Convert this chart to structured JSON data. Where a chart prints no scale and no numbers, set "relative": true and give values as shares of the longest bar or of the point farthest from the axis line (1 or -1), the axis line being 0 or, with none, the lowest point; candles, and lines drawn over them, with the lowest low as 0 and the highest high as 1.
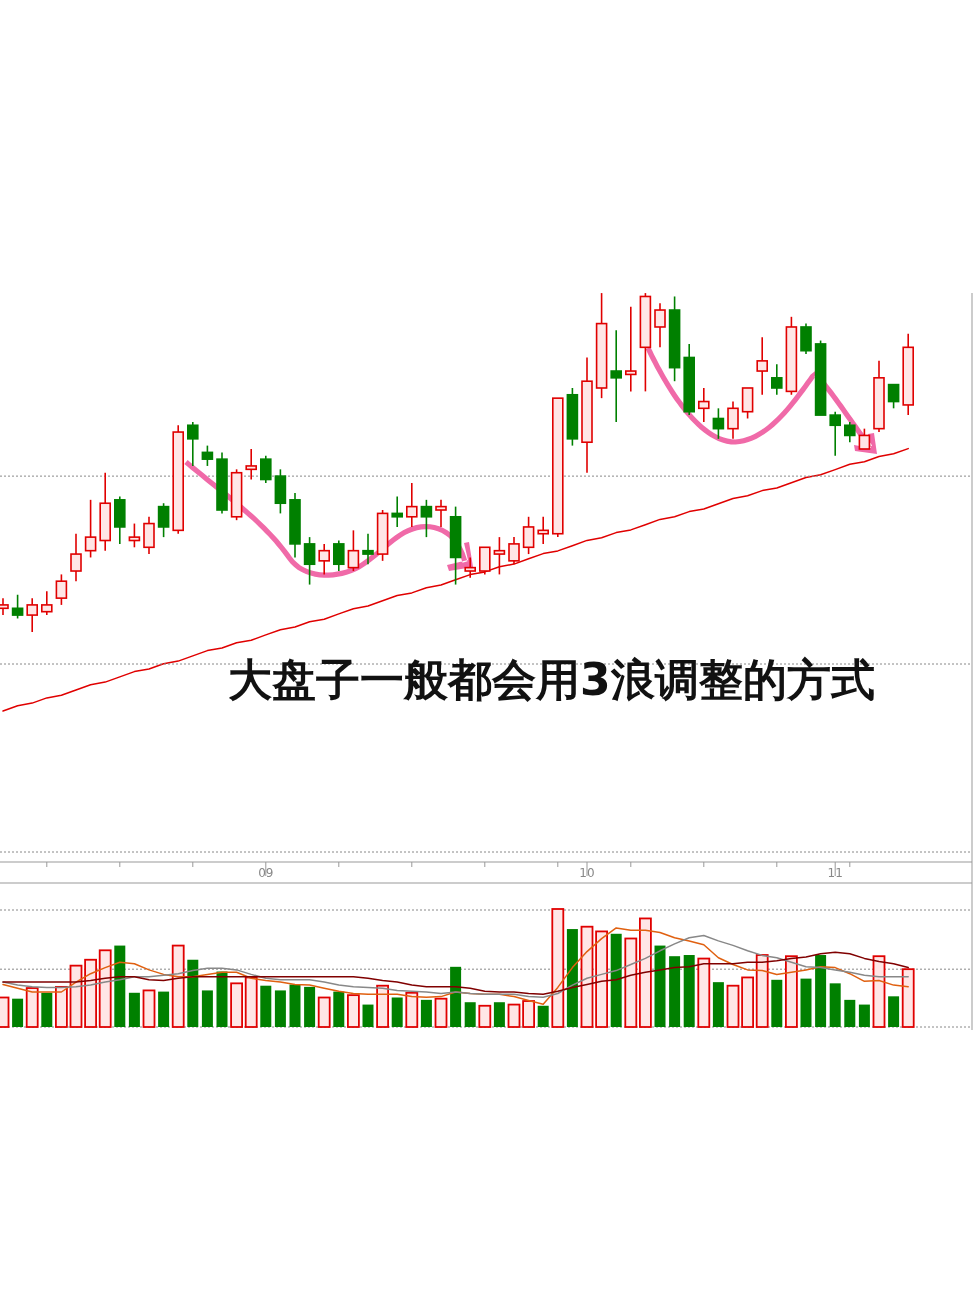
{
  "chart_data": [
    {
      "type": "candlestick",
      "relative": true,
      "ref_lines": [
        {
          "axis": "y",
          "value": 0.46,
          "color": "#888888",
          "line_style": "dotted"
        }
      ],
      "categories": [
        null,
        null,
        null,
        null,
        null,
        null,
        null,
        null,
        null,
        null,
        null,
        null,
        null,
        null,
        null,
        null,
        null,
        null,
        "09",
        null,
        null,
        null,
        null,
        null,
        null,
        null,
        null,
        null,
        null,
        null,
        null,
        null,
        null,
        null,
        null,
        null,
        null,
        null,
        null,
        null,
        "10",
        null,
        null,
        null,
        null,
        null,
        null,
        null,
        null,
        null,
        null,
        null,
        null,
        null,
        null,
        null,
        null,
        "11",
        null,
        null,
        null,
        null,
        null
      ],
      "ohlc": [
        [
          0.07,
          0.1,
          0.05,
          0.08
        ],
        [
          0.07,
          0.11,
          0.04,
          0.05
        ],
        [
          0.05,
          0.1,
          0,
          0.08
        ],
        [
          0.06,
          0.12,
          0.05,
          0.08
        ],
        [
          0.1,
          0.17,
          0.08,
          0.15
        ],
        [
          0.18,
          0.29,
          0.15,
          0.23
        ],
        [
          0.24,
          0.39,
          0.22,
          0.28
        ],
        [
          0.27,
          0.47,
          0.24,
          0.38
        ],
        [
          0.39,
          0.4,
          0.26,
          0.31
        ],
        [
          0.27,
          0.32,
          0.25,
          0.28
        ],
        [
          0.25,
          0.34,
          0.23,
          0.32
        ],
        [
          0.37,
          0.38,
          0.28,
          0.31
        ],
        [
          0.3,
          0.61,
          0.29,
          0.59
        ],
        [
          0.61,
          0.62,
          0.49,
          0.57
        ],
        [
          0.53,
          0.55,
          0.49,
          0.51
        ],
        [
          0.51,
          0.53,
          0.35,
          0.36
        ],
        [
          0.34,
          0.48,
          0.33,
          0.47
        ],
        [
          0.48,
          0.54,
          0.45,
          0.49
        ],
        [
          0.51,
          0.52,
          0.44,
          0.45
        ],
        [
          0.46,
          0.48,
          0.35,
          0.38
        ],
        [
          0.39,
          0.41,
          0.22,
          0.26
        ],
        [
          0.26,
          0.28,
          0.14,
          0.2
        ],
        [
          0.21,
          0.26,
          0.17,
          0.24
        ],
        [
          0.26,
          0.27,
          0.18,
          0.2
        ],
        [
          0.19,
          0.3,
          0.18,
          0.24
        ],
        [
          0.24,
          0.29,
          0.2,
          0.23
        ],
        [
          0.23,
          0.36,
          0.21,
          0.35
        ],
        [
          0.35,
          0.4,
          0.31,
          0.34
        ],
        [
          0.34,
          0.44,
          0.31,
          0.37
        ],
        [
          0.37,
          0.39,
          0.28,
          0.34
        ],
        [
          0.36,
          0.39,
          0.31,
          0.37
        ],
        [
          0.34,
          0.37,
          0.14,
          0.22
        ],
        [
          0.18,
          0.22,
          0.16,
          0.19
        ],
        [
          0.18,
          0.25,
          0.17,
          0.25
        ],
        [
          0.23,
          0.28,
          0.17,
          0.24
        ],
        [
          0.21,
          0.28,
          0.2,
          0.26
        ],
        [
          0.25,
          0.34,
          0.23,
          0.31
        ],
        [
          0.29,
          0.34,
          0.26,
          0.3
        ],
        [
          0.29,
          0.69,
          0.28,
          0.69
        ],
        [
          0.7,
          0.72,
          0.55,
          0.57
        ],
        [
          0.56,
          0.81,
          0.47,
          0.74
        ],
        [
          0.72,
          1,
          0.69,
          0.91
        ],
        [
          0.77,
          0.89,
          0.62,
          0.75
        ],
        [
          0.76,
          0.96,
          0.71,
          0.77
        ],
        [
          0.84,
          1,
          0.71,
          0.99
        ],
        [
          0.9,
          0.97,
          0.84,
          0.95
        ],
        [
          0.95,
          0.99,
          0.74,
          0.78
        ],
        [
          0.81,
          0.85,
          0.64,
          0.65
        ],
        [
          0.66,
          0.72,
          0.62,
          0.68
        ],
        [
          0.63,
          0.66,
          0.57,
          0.6
        ],
        [
          0.6,
          0.68,
          0.57,
          0.66
        ],
        [
          0.65,
          0.72,
          0.63,
          0.72
        ],
        [
          0.77,
          0.87,
          0.7,
          0.8
        ],
        [
          0.75,
          0.79,
          0.7,
          0.72
        ],
        [
          0.71,
          0.93,
          0.7,
          0.9
        ],
        [
          0.9,
          0.91,
          0.82,
          0.83
        ],
        [
          0.85,
          0.86,
          0.64,
          0.64
        ],
        [
          0.64,
          0.65,
          0.52,
          0.61
        ],
        [
          0.61,
          0.62,
          0.56,
          0.58
        ],
        [
          0.54,
          0.6,
          0.54,
          0.58
        ],
        [
          0.6,
          0.8,
          0.59,
          0.75
        ],
        [
          0.73,
          0.73,
          0.66,
          0.68
        ],
        [
          0.67,
          0.88,
          0.64,
          0.84
        ]
      ],
      "colors": [
        "#e00000",
        "#008000",
        "#e00000",
        "#e00000",
        "#e00000",
        "#e00000",
        "#e00000",
        "#e00000",
        "#008000",
        "#e00000",
        "#e00000",
        "#008000",
        "#e00000",
        "#008000",
        "#008000",
        "#008000",
        "#e00000",
        "#e00000",
        "#008000",
        "#008000",
        "#008000",
        "#008000",
        "#e00000",
        "#008000",
        "#e00000",
        "#008000",
        "#e00000",
        "#008000",
        "#e00000",
        "#008000",
        "#e00000",
        "#008000",
        "#e00000",
        "#e00000",
        "#e00000",
        "#e00000",
        "#e00000",
        "#e00000",
        "#e00000",
        "#008000",
        "#e00000",
        "#e00000",
        "#008000",
        "#e00000",
        "#e00000",
        "#e00000",
        "#008000",
        "#008000",
        "#e00000",
        "#008000",
        "#e00000",
        "#e00000",
        "#e00000",
        "#008000",
        "#e00000",
        "#008000",
        "#008000",
        "#008000",
        "#008000",
        "#e00000",
        "#e00000",
        "#008000",
        "#e00000"
      ],
      "annotations": [
        "大盘子一般都会用3浪调整的方式"
      ]
    },
    {
      "type": "line",
      "relative": true,
      "categories": [
        null,
        null,
        null,
        null,
        null,
        null,
        null,
        null,
        null,
        null,
        null,
        null,
        null,
        null,
        null,
        null,
        null,
        null,
        null,
        null,
        null,
        null,
        null,
        null,
        null,
        null,
        null,
        null,
        null,
        null,
        null,
        null,
        null,
        null,
        null,
        null,
        null,
        null,
        null,
        null,
        null,
        null,
        null,
        null,
        null,
        null,
        null,
        null,
        null,
        null,
        null,
        null,
        null,
        null,
        null,
        null,
        null,
        null,
        null,
        null,
        null,
        null,
        null
      ],
      "series": [
        {
          "color": "#e00000",
          "values": [
            0,
            0.02,
            0.03,
            0.05,
            0.06,
            0.08,
            0.1,
            0.11,
            0.13,
            0.15,
            0.16,
            0.18,
            0.19,
            0.21,
            0.23,
            0.24,
            0.26,
            0.27,
            0.29,
            0.31,
            0.32,
            0.34,
            0.35,
            0.37,
            0.39,
            0.4,
            0.42,
            0.44,
            0.45,
            0.47,
            0.48,
            0.5,
            0.52,
            0.53,
            0.55,
            0.56,
            0.58,
            0.6,
            0.61,
            0.63,
            0.65,
            0.66,
            0.68,
            0.69,
            0.71,
            0.73,
            0.74,
            0.76,
            0.77,
            0.79,
            0.81,
            0.82,
            0.84,
            0.85,
            0.87,
            0.89,
            0.9,
            0.92,
            0.94,
            0.95,
            0.97,
            0.98,
            1
          ]
        }
      ]
    },
    {
      "type": "bar",
      "relative": true,
      "ref_lines": [
        {
          "axis": "y",
          "value": 0.49,
          "color": "#888888",
          "line_style": "dotted"
        }
      ],
      "categories": [
        null,
        null,
        null,
        null,
        null,
        null,
        null,
        null,
        null,
        null,
        null,
        null,
        null,
        null,
        null,
        null,
        null,
        null,
        null,
        null,
        null,
        null,
        null,
        null,
        null,
        null,
        null,
        null,
        null,
        null,
        null,
        null,
        null,
        null,
        null,
        null,
        null,
        null,
        null,
        null,
        null,
        null,
        null,
        null,
        null,
        null,
        null,
        null,
        null,
        null,
        null,
        null,
        null,
        null,
        null,
        null,
        null,
        null,
        null,
        null,
        null,
        null,
        null
      ],
      "values": [
        0.25,
        0.24,
        0.33,
        0.29,
        0.34,
        0.52,
        0.57,
        0.65,
        0.69,
        0.29,
        0.31,
        0.3,
        0.69,
        0.57,
        0.31,
        0.47,
        0.37,
        0.42,
        0.35,
        0.31,
        0.36,
        0.34,
        0.25,
        0.3,
        0.27,
        0.19,
        0.35,
        0.25,
        0.29,
        0.23,
        0.24,
        0.51,
        0.21,
        0.18,
        0.21,
        0.19,
        0.22,
        0.18,
        1,
        0.83,
        0.85,
        0.81,
        0.79,
        0.75,
        0.92,
        0.69,
        0.6,
        0.61,
        0.58,
        0.38,
        0.35,
        0.42,
        0.61,
        0.4,
        0.6,
        0.41,
        0.61,
        0.37,
        0.23,
        0.19,
        0.6,
        0.26,
        0.49
      ],
      "colors": [
        "#e00000",
        "#008000",
        "#e00000",
        "#008000",
        "#e00000",
        "#e00000",
        "#e00000",
        "#e00000",
        "#008000",
        "#008000",
        "#e00000",
        "#008000",
        "#e00000",
        "#008000",
        "#008000",
        "#008000",
        "#e00000",
        "#e00000",
        "#008000",
        "#008000",
        "#008000",
        "#008000",
        "#e00000",
        "#008000",
        "#e00000",
        "#008000",
        "#e00000",
        "#008000",
        "#e00000",
        "#008000",
        "#e00000",
        "#008000",
        "#008000",
        "#e00000",
        "#008000",
        "#e00000",
        "#e00000",
        "#008000",
        "#e00000",
        "#008000",
        "#e00000",
        "#e00000",
        "#008000",
        "#e00000",
        "#e00000",
        "#008000",
        "#008000",
        "#008000",
        "#e00000",
        "#008000",
        "#e00000",
        "#e00000",
        "#e00000",
        "#008000",
        "#e00000",
        "#008000",
        "#008000",
        "#008000",
        "#008000",
        "#008000",
        "#e00000",
        "#008000",
        "#e00000"
      ]
    },
    {
      "type": "line",
      "relative": true,
      "categories": [
        null,
        null,
        null,
        null,
        null,
        null,
        null,
        null,
        null,
        null,
        null,
        null,
        null,
        null,
        null,
        null,
        null,
        null,
        null,
        null,
        null,
        null,
        null,
        null,
        null,
        null,
        null,
        null,
        null,
        null,
        null,
        null,
        null,
        null,
        null,
        null,
        null,
        null,
        null,
        null,
        null,
        null,
        null,
        null,
        null,
        null,
        null,
        null,
        null,
        null,
        null,
        null,
        null,
        null,
        null,
        null,
        null,
        null,
        null,
        null,
        null,
        null,
        null
      ],
      "series": [
        {
          "color": "#e06010",
          "values": [
            0.26,
            0.21,
            0.16,
            0.16,
            0.16,
            0.29,
            0.4,
            0.48,
            0.55,
            0.53,
            0.45,
            0.39,
            0.36,
            0.36,
            0.39,
            0.42,
            0.42,
            0.34,
            0.31,
            0.29,
            0.26,
            0.25,
            0.21,
            0.17,
            0.14,
            0.13,
            0.13,
            0.13,
            0.1,
            0.09,
            0.1,
            0.16,
            0.14,
            0.13,
            0.13,
            0.1,
            0.05,
            0,
            0.22,
            0.48,
            0.69,
            0.86,
            1,
            0.97,
            0.97,
            0.94,
            0.87,
            0.83,
            0.78,
            0.61,
            0.52,
            0.45,
            0.44,
            0.39,
            0.42,
            0.45,
            0.49,
            0.48,
            0.4,
            0.3,
            0.31,
            0.25,
            0.23
          ]
        },
        {
          "color": "#888888",
          "values": [
            0.29,
            0.25,
            0.23,
            0.22,
            0.22,
            0.23,
            0.25,
            0.29,
            0.32,
            0.36,
            0.36,
            0.38,
            0.4,
            0.44,
            0.47,
            0.47,
            0.45,
            0.39,
            0.34,
            0.32,
            0.32,
            0.32,
            0.29,
            0.25,
            0.23,
            0.22,
            0.21,
            0.18,
            0.17,
            0.16,
            0.14,
            0.16,
            0.14,
            0.13,
            0.13,
            0.13,
            0.1,
            0.09,
            0.14,
            0.25,
            0.34,
            0.39,
            0.44,
            0.52,
            0.6,
            0.7,
            0.79,
            0.87,
            0.9,
            0.83,
            0.77,
            0.7,
            0.64,
            0.61,
            0.55,
            0.49,
            0.48,
            0.45,
            0.42,
            0.38,
            0.36,
            0.36,
            0.36
          ]
        },
        {
          "color": "#800000",
          "values": [
            0.29,
            0.29,
            0.29,
            0.29,
            0.29,
            0.29,
            0.31,
            0.34,
            0.36,
            0.36,
            0.32,
            0.31,
            0.34,
            0.36,
            0.36,
            0.36,
            0.36,
            0.36,
            0.36,
            0.36,
            0.36,
            0.36,
            0.36,
            0.36,
            0.36,
            0.34,
            0.31,
            0.29,
            0.25,
            0.23,
            0.23,
            0.23,
            0.21,
            0.17,
            0.16,
            0.16,
            0.14,
            0.13,
            0.17,
            0.22,
            0.26,
            0.3,
            0.32,
            0.38,
            0.42,
            0.45,
            0.48,
            0.49,
            0.53,
            0.53,
            0.53,
            0.55,
            0.55,
            0.57,
            0.6,
            0.62,
            0.66,
            0.68,
            0.66,
            0.6,
            0.56,
            0.53,
            0.48
          ]
        }
      ]
    }
  ]
}
